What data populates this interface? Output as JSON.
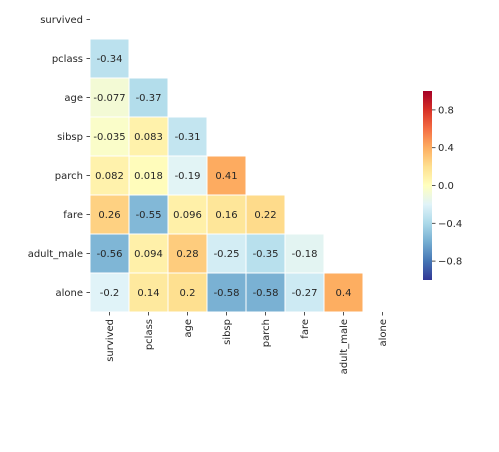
{
  "chart_data": {
    "type": "heatmap",
    "variables": [
      "survived",
      "pclass",
      "age",
      "sibsp",
      "parch",
      "fare",
      "adult_male",
      "alone"
    ],
    "mask": "upper-triangle-including-diagonal",
    "matrix": [
      [
        null,
        null,
        null,
        null,
        null,
        null,
        null,
        null
      ],
      [
        -0.34,
        null,
        null,
        null,
        null,
        null,
        null,
        null
      ],
      [
        -0.077,
        -0.37,
        null,
        null,
        null,
        null,
        null,
        null
      ],
      [
        -0.035,
        0.083,
        -0.31,
        null,
        null,
        null,
        null,
        null
      ],
      [
        0.082,
        0.018,
        -0.19,
        0.41,
        null,
        null,
        null,
        null
      ],
      [
        0.26,
        -0.55,
        0.096,
        0.16,
        0.22,
        null,
        null,
        null
      ],
      [
        -0.56,
        0.094,
        0.28,
        -0.25,
        -0.35,
        -0.18,
        null,
        null
      ],
      [
        -0.2,
        0.14,
        0.2,
        -0.58,
        -0.58,
        -0.27,
        0.4,
        null
      ]
    ],
    "cell_labels": [
      [
        "",
        "",
        "",
        "",
        "",
        "",
        "",
        ""
      ],
      [
        "-0.34",
        "",
        "",
        "",
        "",
        "",
        "",
        ""
      ],
      [
        "-0.077",
        "-0.37",
        "",
        "",
        "",
        "",
        "",
        ""
      ],
      [
        "-0.035",
        "0.083",
        "-0.31",
        "",
        "",
        "",
        "",
        ""
      ],
      [
        "0.082",
        "0.018",
        "-0.19",
        "0.41",
        "",
        "",
        "",
        ""
      ],
      [
        "0.26",
        "-0.55",
        "0.096",
        "0.16",
        "0.22",
        "",
        "",
        ""
      ],
      [
        "-0.56",
        "0.094",
        "0.28",
        "-0.25",
        "-0.35",
        "-0.18",
        "",
        ""
      ],
      [
        "-0.2",
        "0.14",
        "0.2",
        "-0.58",
        "-0.58",
        "-0.27",
        "0.4",
        ""
      ]
    ],
    "colormap": "RdYlBu_r",
    "vmin": -1,
    "vmax": 1,
    "colorbar": {
      "ticks": [
        0.8,
        0.4,
        0.0,
        -0.4,
        -0.8
      ],
      "tick_labels": [
        "0.8",
        "0.4",
        "0.0",
        "−0.4",
        "−0.8"
      ]
    },
    "title": "",
    "xlabel": "",
    "ylabel": ""
  }
}
